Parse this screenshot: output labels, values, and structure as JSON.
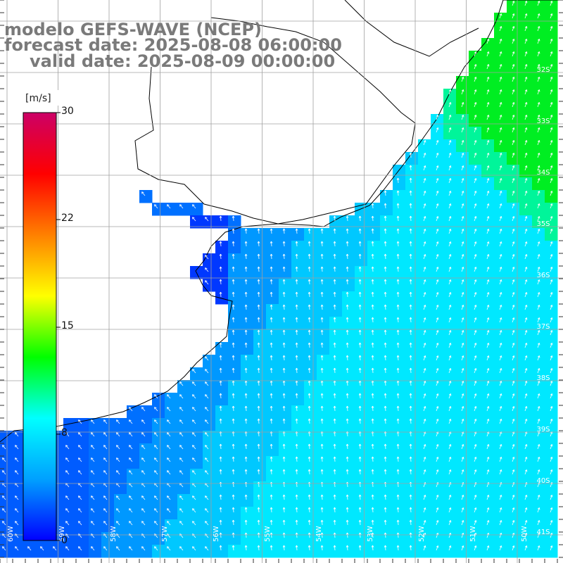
{
  "titles": {
    "line1": "modelo GEFS-WAVE (NCEP)",
    "line2": "forecast date: 2025-08-08 06:00:00",
    "line3": "valid date: 2025-08-09 00:00:00"
  },
  "colorbar": {
    "unit": "[m/s]",
    "ticks": [
      "30",
      "22",
      "15",
      "8",
      "0"
    ],
    "min": 0,
    "max": 30,
    "stops": [
      "#0000ff",
      "#00a0ff",
      "#00ffff",
      "#00ff00",
      "#ffff00",
      "#ff8000",
      "#ff0000",
      "#cc0066"
    ]
  },
  "lat_labels": [
    "32S",
    "33S",
    "34S",
    "35S",
    "36S",
    "37S",
    "38S",
    "39S",
    "40S",
    "41S"
  ],
  "lon_labels": [
    "60W",
    "59W",
    "58W",
    "57W",
    "56W",
    "55W",
    "54W",
    "53W",
    "52W",
    "51W",
    "50W"
  ],
  "colors": {
    "land": "#ffffff",
    "coast": "#000000",
    "grid": "#a0a0a0",
    "arrows": "#ffffff"
  },
  "icons": [
    "wind-arrow-icon"
  ]
}
